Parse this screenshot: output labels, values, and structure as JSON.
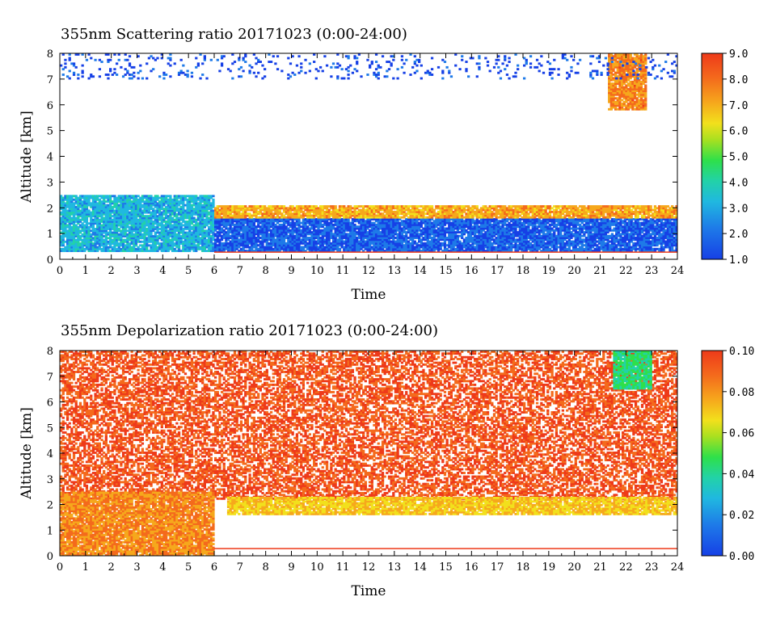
{
  "chart_data": [
    {
      "type": "heatmap",
      "title": "355nm Scattering ratio   20171023 (0:00-24:00)",
      "xlabel": "Time",
      "ylabel": "Altitude [km]",
      "xlim": [
        0,
        24
      ],
      "ylim": [
        0,
        8
      ],
      "x_ticks": [
        "0",
        "1",
        "2",
        "3",
        "4",
        "5",
        "6",
        "7",
        "8",
        "9",
        "10",
        "11",
        "12",
        "13",
        "14",
        "15",
        "16",
        "17",
        "18",
        "19",
        "20",
        "21",
        "22",
        "23",
        "24"
      ],
      "y_ticks": [
        "0",
        "1",
        "2",
        "3",
        "4",
        "5",
        "6",
        "7",
        "8"
      ],
      "colorbar": {
        "range": [
          1.0,
          9.0
        ],
        "tick_labels": [
          "1.0",
          "2.0",
          "3.0",
          "4.0",
          "5.0",
          "6.0",
          "7.0",
          "8.0",
          "9.0"
        ]
      },
      "features": [
        {
          "description": "boundary layer aerosol, high scattering",
          "time": [
            0,
            6
          ],
          "altitude_km": [
            0.3,
            2.5
          ],
          "value": 3.0
        },
        {
          "description": "boundary layer aerosol",
          "time": [
            6,
            24
          ],
          "altitude_km": [
            0.3,
            1.6
          ],
          "value": 1.8
        },
        {
          "description": "layer top edge",
          "time": [
            6,
            24
          ],
          "altitude_km": [
            1.6,
            2.1
          ],
          "value": 7.0
        },
        {
          "description": "cloud",
          "time": [
            21.3,
            22.8
          ],
          "altitude_km": [
            5.8,
            8.0
          ],
          "value": 7.5
        },
        {
          "description": "sparse upper noise",
          "time": [
            0,
            24
          ],
          "altitude_km": [
            7.0,
            8.0
          ],
          "value": 1.5
        }
      ]
    },
    {
      "type": "heatmap",
      "title": "355nm Depolarization ratio   20171023 (0:00-24:00)",
      "xlabel": "Time",
      "ylabel": "Altitude [km]",
      "xlim": [
        0,
        24
      ],
      "ylim": [
        0,
        8
      ],
      "x_ticks": [
        "0",
        "1",
        "2",
        "3",
        "4",
        "5",
        "6",
        "7",
        "8",
        "9",
        "10",
        "11",
        "12",
        "13",
        "14",
        "15",
        "16",
        "17",
        "18",
        "19",
        "20",
        "21",
        "22",
        "23",
        "24"
      ],
      "y_ticks": [
        "0",
        "1",
        "2",
        "3",
        "4",
        "5",
        "6",
        "7",
        "8"
      ],
      "colorbar": {
        "range": [
          0.0,
          0.1
        ],
        "tick_labels": [
          "0.00",
          "0.02",
          "0.04",
          "0.06",
          "0.08",
          "0.10"
        ]
      },
      "features": [
        {
          "description": "noisy free troposphere",
          "time": [
            0,
            24
          ],
          "altitude_km": [
            2.2,
            8.0
          ],
          "value": 0.09
        },
        {
          "description": "layer top band",
          "time": [
            6.5,
            24
          ],
          "altitude_km": [
            1.6,
            2.3
          ],
          "value": 0.07
        },
        {
          "description": "early morning aerosol",
          "time": [
            0,
            6
          ],
          "altitude_km": [
            0.0,
            2.5
          ],
          "value": 0.08
        },
        {
          "description": "cloud (low depolarization)",
          "time": [
            21.5,
            23
          ],
          "altitude_km": [
            6.5,
            8.0
          ],
          "value": 0.04
        }
      ]
    }
  ]
}
